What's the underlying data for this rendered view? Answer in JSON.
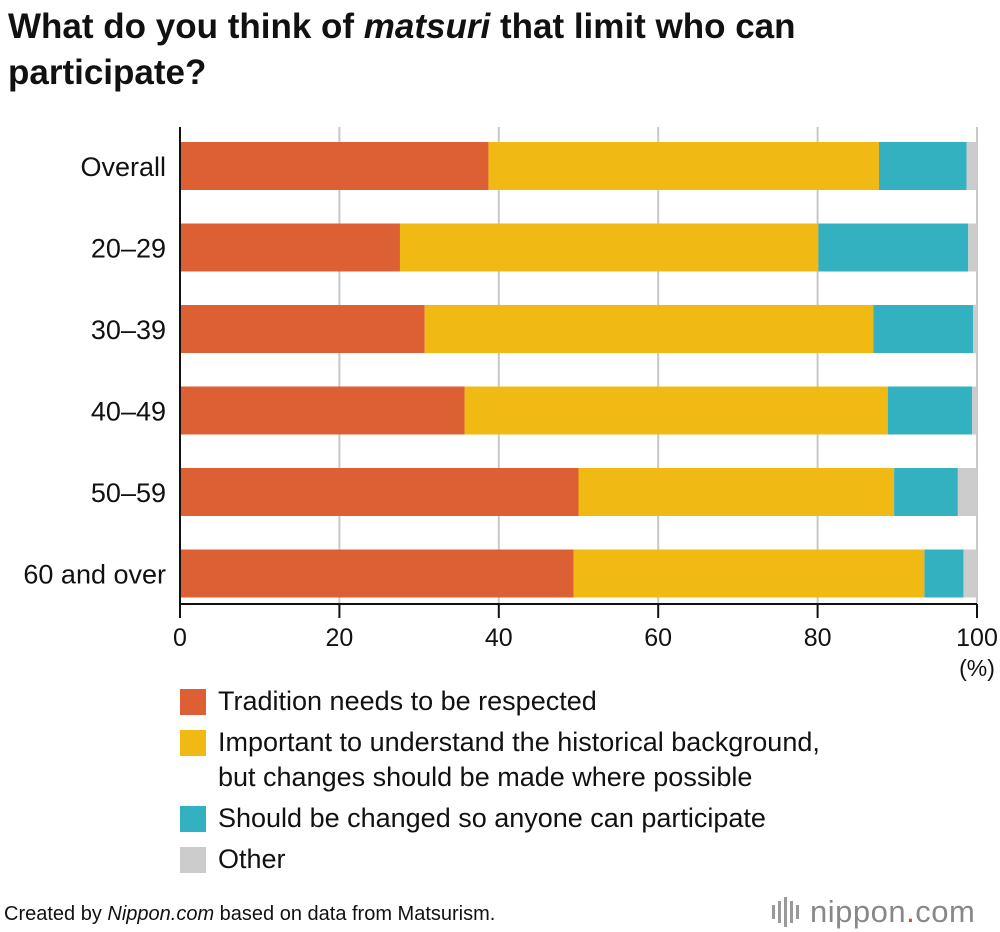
{
  "title": {
    "part1": "What do you think of ",
    "emph": "matsuri",
    "part2": " that limit who can participate?"
  },
  "chart_data": {
    "type": "bar",
    "orientation": "horizontal",
    "stacked": true,
    "categories": [
      "Overall",
      "20–29",
      "30–39",
      "40–49",
      "50–59",
      "60 and over"
    ],
    "series": [
      {
        "name": "Tradition needs to be respected",
        "color": "#dd6035",
        "values": [
          38.7,
          27.6,
          30.7,
          35.7,
          50.0,
          49.4
        ]
      },
      {
        "name": "Important to understand the historical background, but changes should be made where possible",
        "color": "#f0b914",
        "values": [
          49.0,
          52.5,
          56.3,
          53.1,
          39.6,
          44.0
        ]
      },
      {
        "name": "Should be changed so anyone can participate",
        "color": "#34b1c0",
        "values": [
          11.0,
          18.8,
          12.5,
          10.6,
          8.0,
          4.9
        ]
      },
      {
        "name": "Other",
        "color": "#cccccc",
        "values": [
          1.3,
          1.1,
          0.5,
          0.6,
          2.4,
          1.7
        ]
      }
    ],
    "xlim": [
      0,
      100
    ],
    "xticks": [
      "0",
      "20",
      "40",
      "60",
      "80",
      "100"
    ],
    "xunit": "(%)",
    "grid": true,
    "legend_position": "bottom"
  },
  "legend": {
    "items": [
      {
        "lines": [
          "Tradition needs to be respected"
        ],
        "color": "#dd6035"
      },
      {
        "lines": [
          "Important to understand the historical background,",
          "but changes should be made where possible"
        ],
        "color": "#f0b914"
      },
      {
        "lines": [
          "Should be changed so anyone can participate"
        ],
        "color": "#34b1c0"
      },
      {
        "lines": [
          "Other"
        ],
        "color": "#cccccc"
      }
    ]
  },
  "source": {
    "prefix": "Created by ",
    "site": "Nippon.com",
    "suffix": " based on data from Matsurism."
  },
  "logo": {
    "name": "nippon",
    "dot": ".",
    "tld": "com",
    "icon": "equalizer-bars-icon"
  }
}
